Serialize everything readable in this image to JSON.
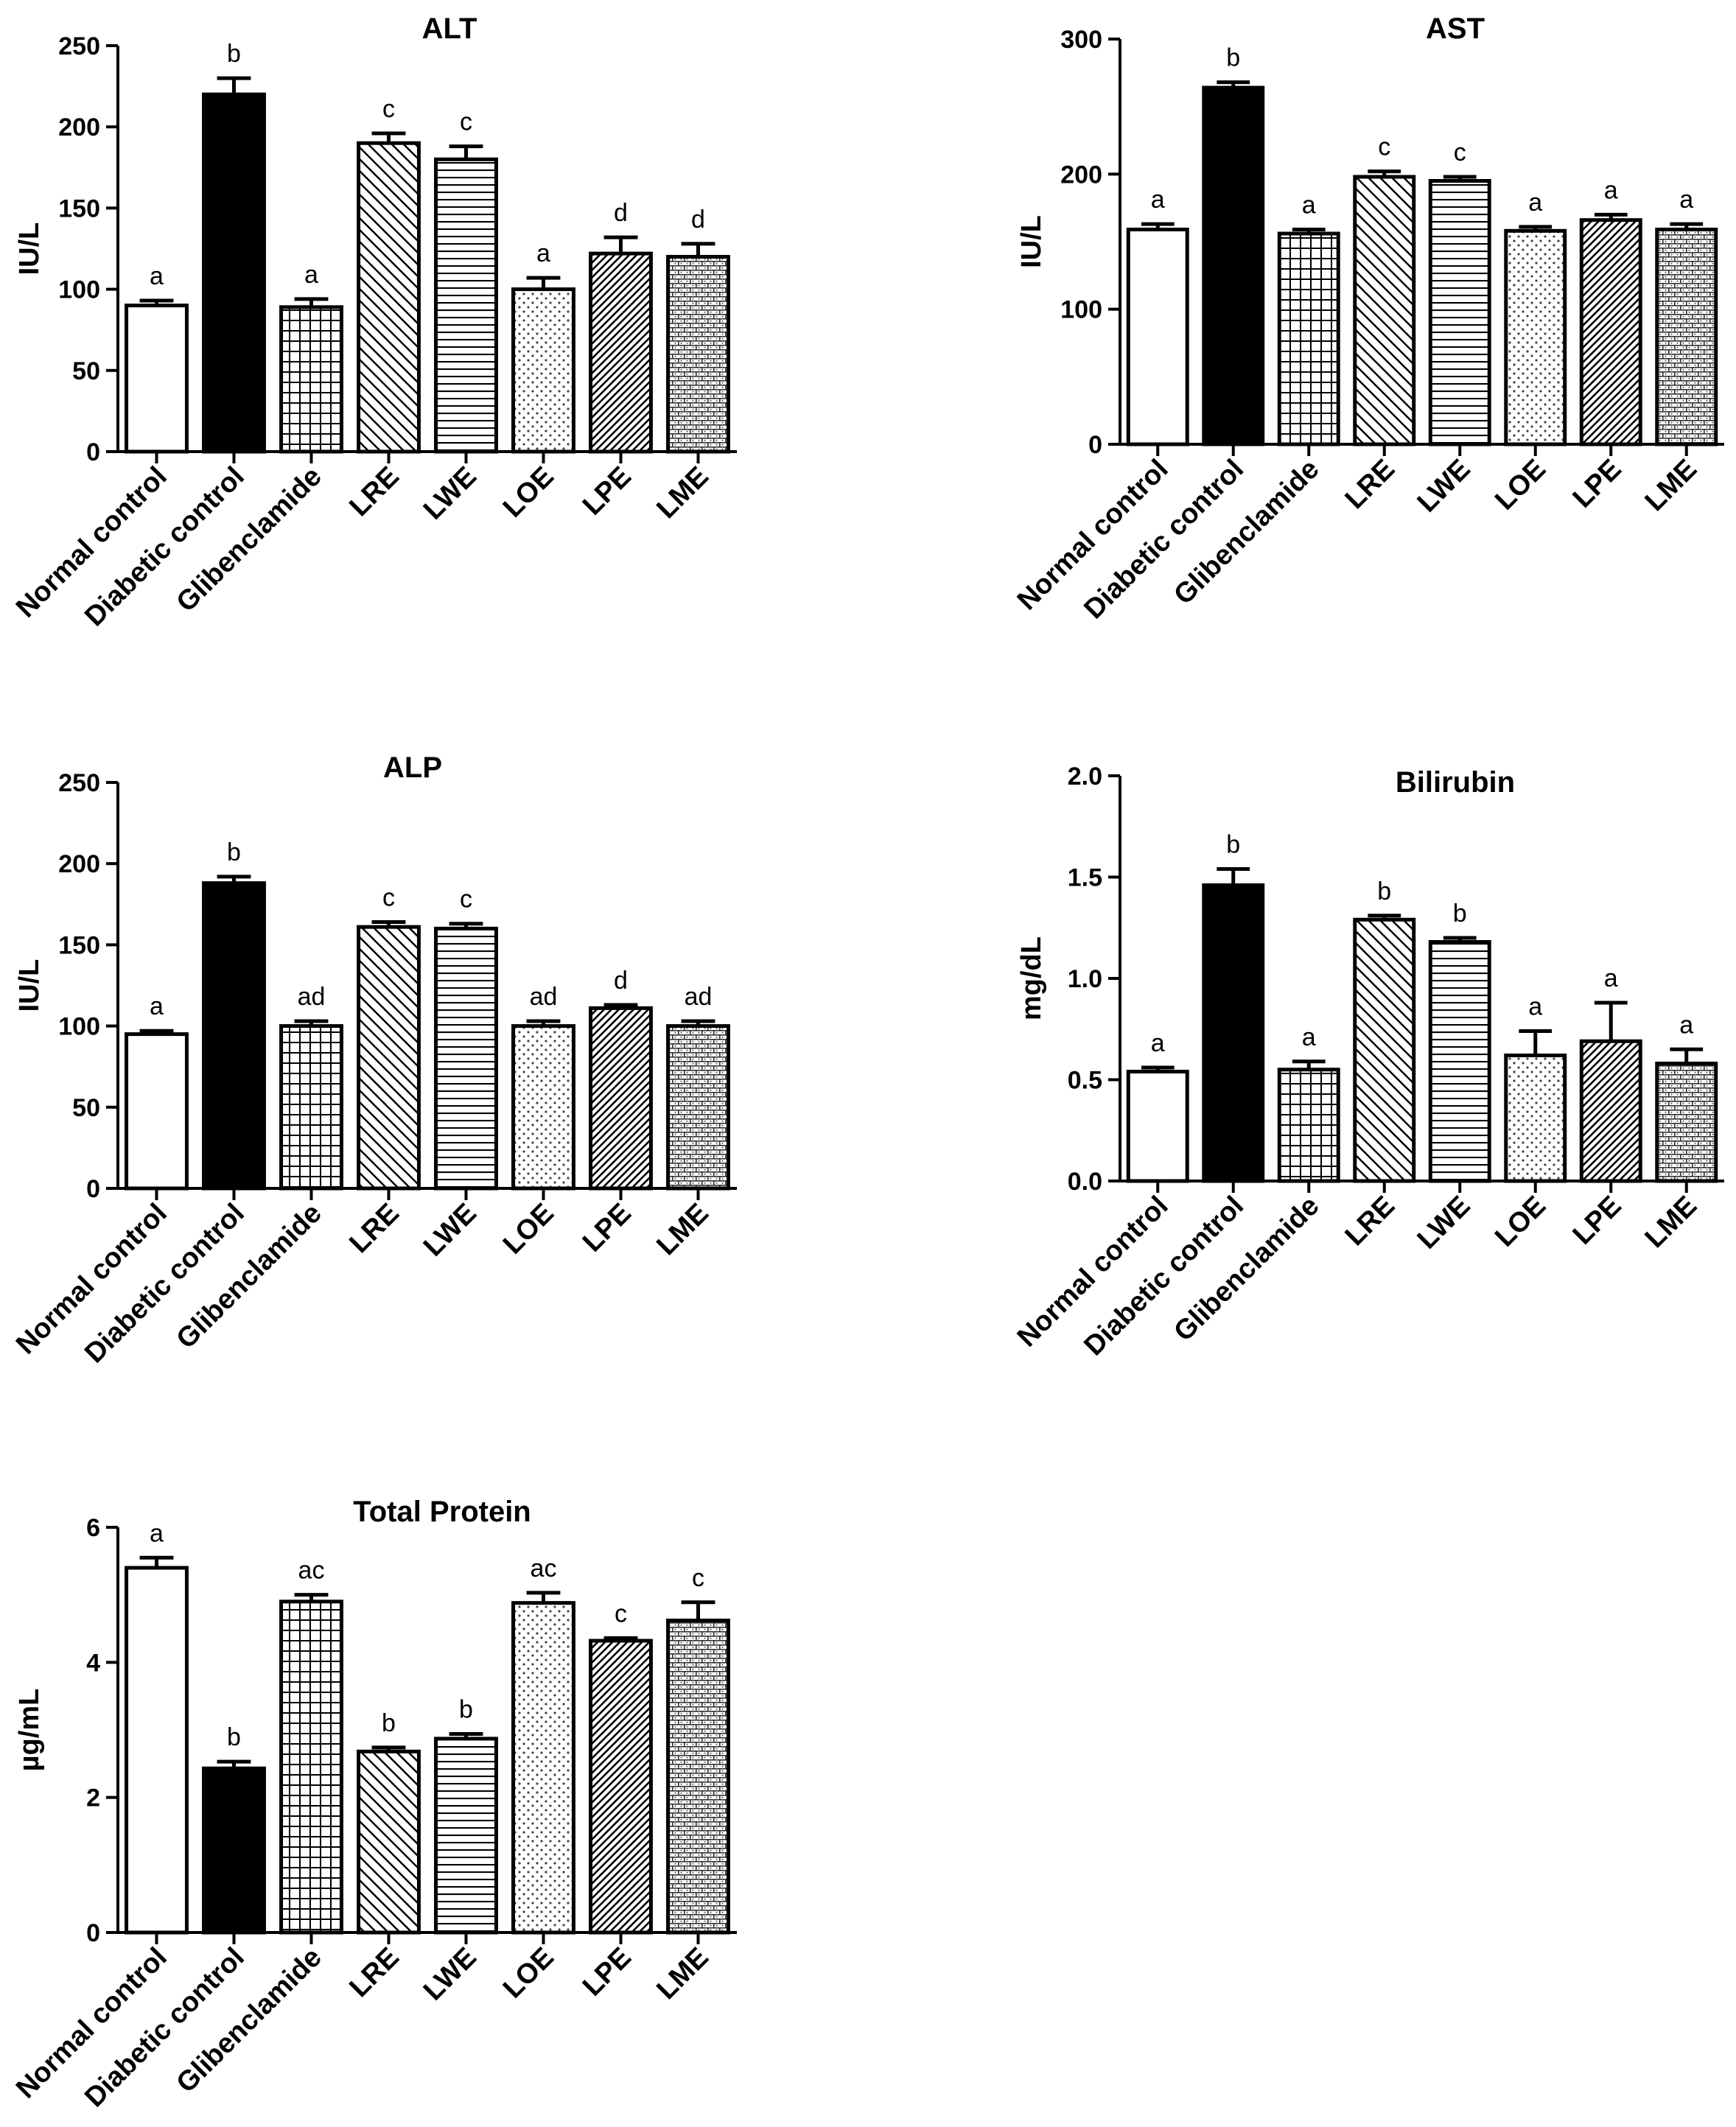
{
  "chart_data": [
    {
      "type": "bar",
      "title": "ALT",
      "ylabel": "IU/L",
      "xlabel": "",
      "ylim": [
        0,
        250
      ],
      "yticks": [
        "0",
        "50",
        "100",
        "150",
        "200",
        "250"
      ],
      "categories": [
        "Normal control",
        "Diabetic control",
        "Glibenclamide",
        "LRE",
        "LWE",
        "LOE",
        "LPE",
        "LME"
      ],
      "values": [
        90,
        220,
        89,
        190,
        180,
        100,
        122,
        120
      ],
      "errors": [
        3,
        10,
        5,
        6,
        8,
        7,
        10,
        8
      ],
      "significance": [
        "a",
        "b",
        "a",
        "c",
        "c",
        "a",
        "d",
        "d"
      ]
    },
    {
      "type": "bar",
      "title": "AST",
      "ylabel": "IU/L",
      "xlabel": "",
      "ylim": [
        0,
        300
      ],
      "yticks": [
        "0",
        "100",
        "200",
        "300"
      ],
      "categories": [
        "Normal control",
        "Diabetic control",
        "Glibenclamide",
        "LRE",
        "LWE",
        "LOE",
        "LPE",
        "LME"
      ],
      "values": [
        159,
        264,
        156,
        198,
        195,
        158,
        166,
        159
      ],
      "errors": [
        4,
        4,
        3,
        4,
        3,
        3,
        4,
        4
      ],
      "significance": [
        "a",
        "b",
        "a",
        "c",
        "c",
        "a",
        "a",
        "a"
      ]
    },
    {
      "type": "bar",
      "title": "ALP",
      "ylabel": "IU/L",
      "xlabel": "",
      "ylim": [
        0,
        250
      ],
      "yticks": [
        "0",
        "50",
        "100",
        "150",
        "200",
        "250"
      ],
      "categories": [
        "Normal control",
        "Diabetic control",
        "Glibenclamide",
        "LRE",
        "LWE",
        "LOE",
        "LPE",
        "LME"
      ],
      "values": [
        95,
        188,
        100,
        161,
        160,
        100,
        111,
        100
      ],
      "errors": [
        2,
        4,
        3,
        3,
        3,
        3,
        2,
        3
      ],
      "significance": [
        "a",
        "b",
        "ad",
        "c",
        "c",
        "ad",
        "d",
        "ad"
      ]
    },
    {
      "type": "bar",
      "title": "Bilirubin",
      "ylabel": "mg/dL",
      "xlabel": "",
      "ylim": [
        0,
        2.0
      ],
      "yticks": [
        "0.0",
        "0.5",
        "1.0",
        "1.5",
        "2.0"
      ],
      "categories": [
        "Normal control",
        "Diabetic control",
        "Glibenclamide",
        "LRE",
        "LWE",
        "LOE",
        "LPE",
        "LME"
      ],
      "values": [
        0.54,
        1.46,
        0.55,
        1.29,
        1.18,
        0.62,
        0.69,
        0.58
      ],
      "errors": [
        0.02,
        0.08,
        0.04,
        0.02,
        0.02,
        0.12,
        0.19,
        0.07
      ],
      "significance": [
        "a",
        "b",
        "a",
        "b",
        "b",
        "a",
        "a",
        "a"
      ]
    },
    {
      "type": "bar",
      "title": "Total Protein",
      "ylabel": "µg/mL",
      "xlabel": "",
      "ylim": [
        0,
        6
      ],
      "yticks": [
        "0",
        "2",
        "4",
        "6"
      ],
      "categories": [
        "Normal control",
        "Diabetic control",
        "Glibenclamide",
        "LRE",
        "LWE",
        "LOE",
        "LPE",
        "LME"
      ],
      "values": [
        5.4,
        2.43,
        4.9,
        2.68,
        2.87,
        4.88,
        4.32,
        4.62
      ],
      "errors": [
        0.15,
        0.1,
        0.1,
        0.06,
        0.07,
        0.15,
        0.04,
        0.27
      ],
      "significance": [
        "a",
        "b",
        "ac",
        "b",
        "b",
        "ac",
        "c",
        "c"
      ]
    }
  ],
  "bar_patterns": [
    "solid-white",
    "solid-black",
    "grid",
    "diagonal-back",
    "horizontal",
    "dots",
    "diagonal-forward",
    "brick"
  ]
}
